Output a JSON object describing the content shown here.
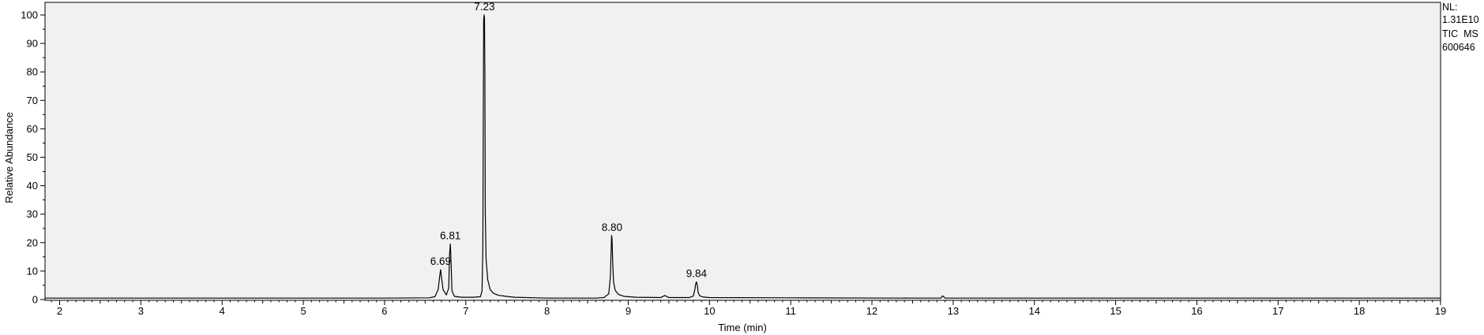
{
  "chart_data": {
    "type": "line",
    "title": "",
    "xlabel": "Time (min)",
    "ylabel": "Relative Abundance",
    "xlim": [
      1.82,
      19.0
    ],
    "ylim": [
      0,
      101
    ],
    "x_ticks": [
      2,
      3,
      4,
      5,
      6,
      7,
      8,
      9,
      10,
      11,
      12,
      13,
      14,
      15,
      16,
      17,
      18,
      19
    ],
    "y_ticks": [
      0,
      10,
      20,
      30,
      40,
      50,
      60,
      70,
      80,
      90,
      100
    ],
    "legend_position": "top-right",
    "info": {
      "nl_label": "NL:",
      "nl_value": "1.31E10",
      "trace": "TIC  MS",
      "sample": "600646"
    },
    "peaks": [
      {
        "label": "6.69",
        "rt": 6.69,
        "height": 10.5,
        "width": 0.012
      },
      {
        "label": "6.81",
        "rt": 6.81,
        "height": 19.5,
        "width": 0.008
      },
      {
        "label": "7.23",
        "rt": 7.23,
        "height": 100,
        "width": 0.01
      },
      {
        "label": "8.80",
        "rt": 8.8,
        "height": 22.5,
        "width": 0.012
      },
      {
        "label": "9.84",
        "rt": 9.84,
        "height": 6.2,
        "width": 0.012
      }
    ],
    "series": [
      {
        "name": "TIC MS",
        "x": [
          1.82,
          6.0,
          6.55,
          6.62,
          6.66,
          6.68,
          6.69,
          6.7,
          6.72,
          6.76,
          6.79,
          6.8,
          6.81,
          6.82,
          6.83,
          6.86,
          6.95,
          7.1,
          7.18,
          7.2,
          7.21,
          7.215,
          7.22,
          7.225,
          7.23,
          7.235,
          7.24,
          7.25,
          7.27,
          7.3,
          7.34,
          7.4,
          7.5,
          7.6,
          8.0,
          8.6,
          8.7,
          8.76,
          8.78,
          8.79,
          8.795,
          8.8,
          8.81,
          8.82,
          8.84,
          8.88,
          8.95,
          9.1,
          9.4,
          9.45,
          9.5,
          9.75,
          9.8,
          9.82,
          9.83,
          9.84,
          9.85,
          9.86,
          9.88,
          9.92,
          10.0,
          11.0,
          12.5,
          12.85,
          12.87,
          12.9,
          14.0,
          16.0,
          19.0
        ],
        "y": [
          0.5,
          0.5,
          0.6,
          1.0,
          3.5,
          8.5,
          10.5,
          8.0,
          3.5,
          1.6,
          4.0,
          16.0,
          19.5,
          12.0,
          3.0,
          1.1,
          0.8,
          0.8,
          1.0,
          3.0,
          18.0,
          60.0,
          98.0,
          100.0,
          99.0,
          80.0,
          30.0,
          14.0,
          7.0,
          3.5,
          2.2,
          1.5,
          1.1,
          0.8,
          0.5,
          0.5,
          0.7,
          2.0,
          8.0,
          18.0,
          22.5,
          21.5,
          12.0,
          6.0,
          3.2,
          1.8,
          1.1,
          0.8,
          0.7,
          1.4,
          0.7,
          0.7,
          1.2,
          3.5,
          5.5,
          6.2,
          5.0,
          2.5,
          1.3,
          0.9,
          0.7,
          0.6,
          0.5,
          0.5,
          1.3,
          0.5,
          0.5,
          0.5,
          0.5
        ]
      }
    ]
  }
}
